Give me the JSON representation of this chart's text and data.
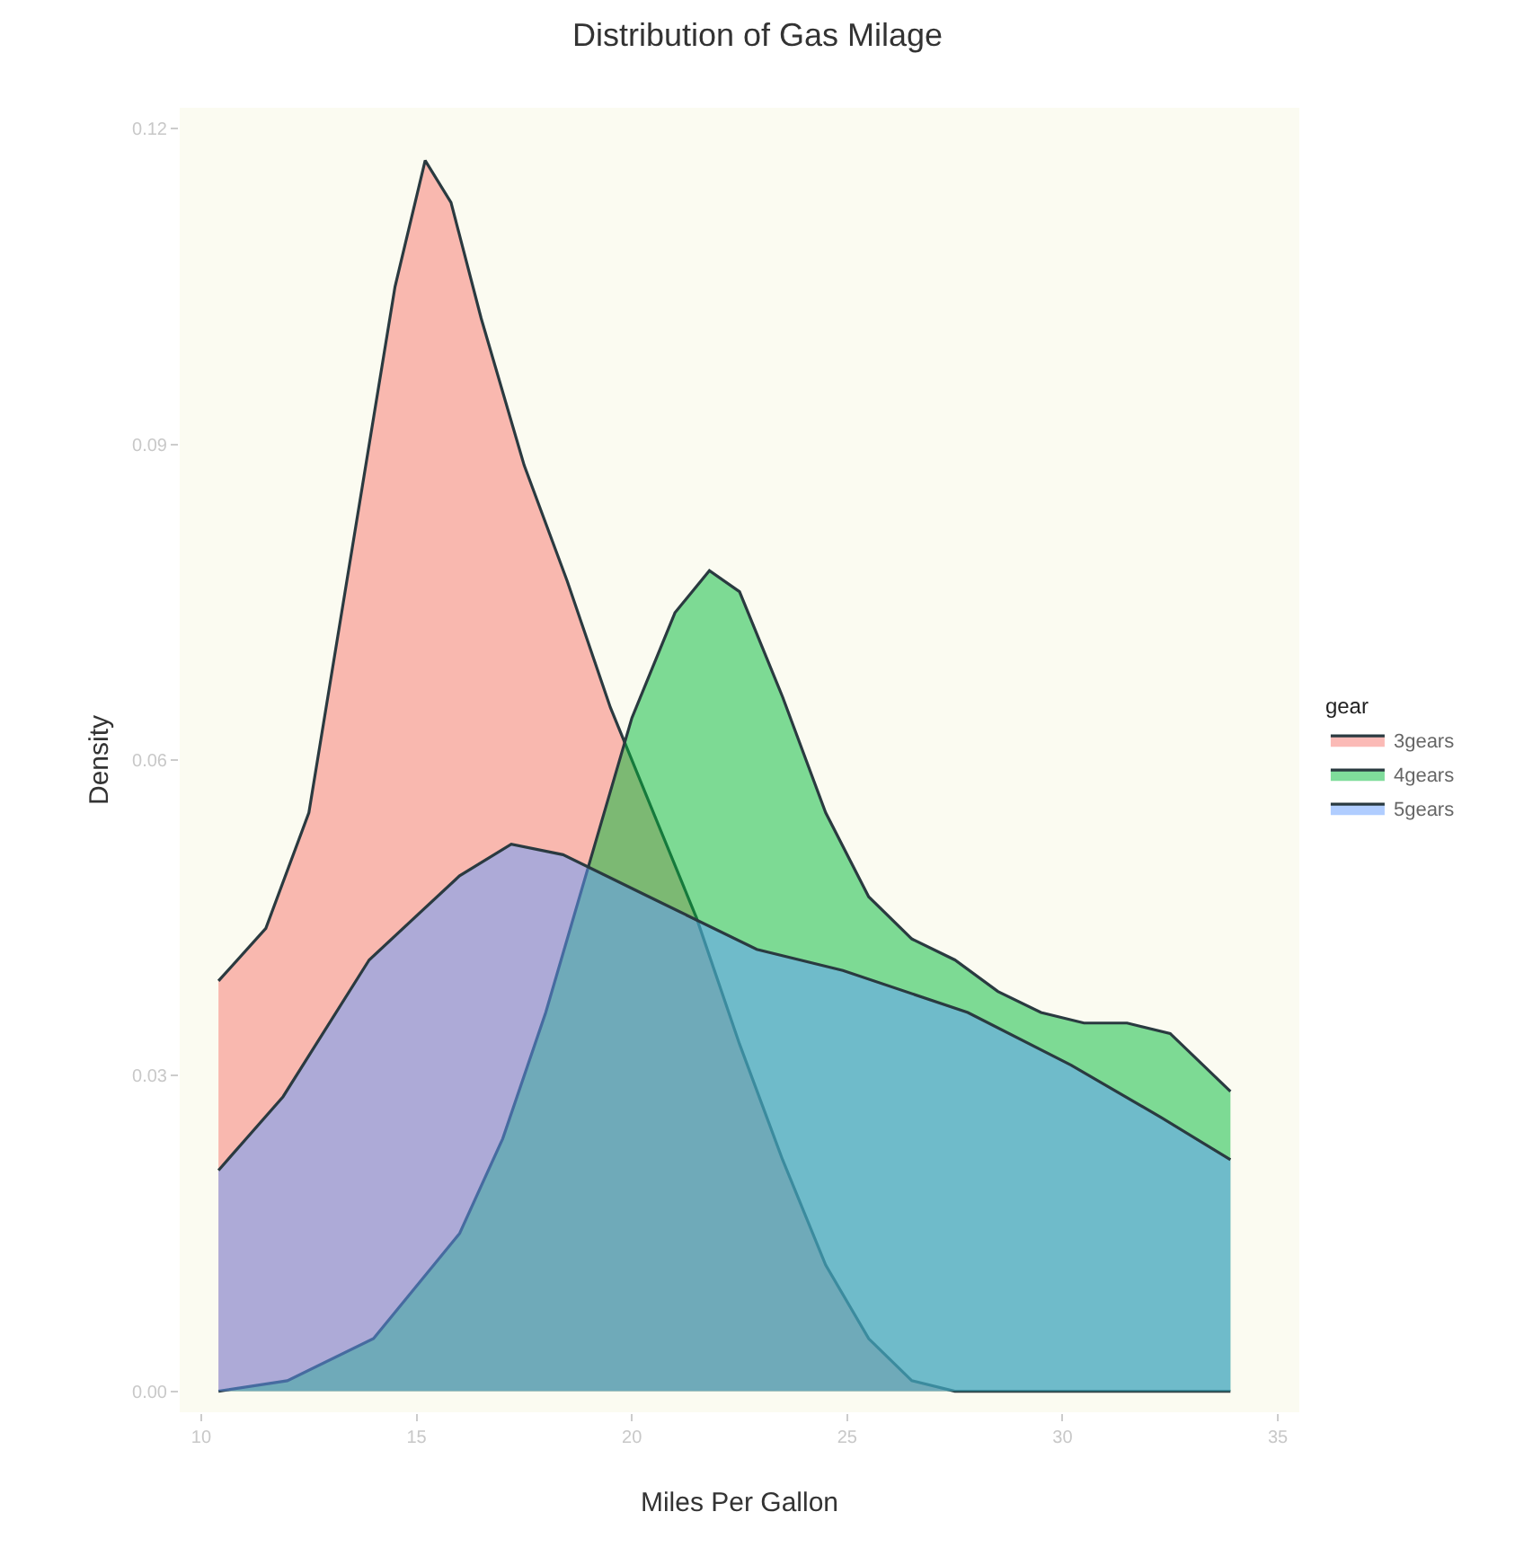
{
  "chart_data": {
    "type": "area",
    "title": "Distribution of Gas Milage",
    "xlabel": "Miles Per Gallon",
    "ylabel": "Density",
    "legend_title": "gear",
    "legend": "right",
    "grid": false,
    "xlim": [
      9.5,
      35.5
    ],
    "xticks": [
      10,
      15,
      20,
      25,
      30,
      35
    ],
    "ylim": [
      -0.002,
      0.122
    ],
    "yticks": [
      {
        "value": 0,
        "label": "0.00"
      },
      {
        "value": 0.03,
        "label": "0.03"
      },
      {
        "value": 0.06,
        "label": "0.06"
      },
      {
        "value": 0.09,
        "label": "0.09"
      },
      {
        "value": 0.12,
        "label": "0.12"
      }
    ],
    "series": [
      {
        "name": "3gears",
        "color": "#f8766d",
        "x": [
          10.4,
          11.5,
          12.5,
          13.5,
          14.5,
          15.2,
          15.8,
          16.5,
          17.5,
          18.5,
          19.5,
          20.5,
          21.5,
          22.5,
          23.5,
          24.5,
          25.5,
          26.5,
          27.5,
          33.9
        ],
        "values": [
          0.039,
          0.044,
          0.055,
          0.08,
          0.105,
          0.117,
          0.113,
          0.102,
          0.088,
          0.077,
          0.065,
          0.055,
          0.045,
          0.033,
          0.022,
          0.012,
          0.005,
          0.001,
          0,
          0
        ]
      },
      {
        "name": "4gears",
        "color": "#00ba38",
        "x": [
          10.4,
          12,
          14,
          16,
          17,
          18,
          19,
          20,
          21,
          21.8,
          22.5,
          23.5,
          24.5,
          25.5,
          26.5,
          27.5,
          28.5,
          29.5,
          30.5,
          31.5,
          32.5,
          33.9
        ],
        "values": [
          0,
          0.001,
          0.005,
          0.015,
          0.024,
          0.036,
          0.05,
          0.064,
          0.074,
          0.078,
          0.076,
          0.066,
          0.055,
          0.047,
          0.043,
          0.041,
          0.038,
          0.036,
          0.035,
          0.035,
          0.034,
          0.0285
        ]
      },
      {
        "name": "5gears",
        "color": "#619cff",
        "x": [
          10.4,
          11.9,
          13.9,
          16,
          17.2,
          18.4,
          20.4,
          22.9,
          24.9,
          27.8,
          30.2,
          32.3,
          33.9
        ],
        "values": [
          0.021,
          0.028,
          0.041,
          0.049,
          0.052,
          0.051,
          0.047,
          0.042,
          0.04,
          0.036,
          0.031,
          0.026,
          0.022
        ]
      }
    ]
  }
}
